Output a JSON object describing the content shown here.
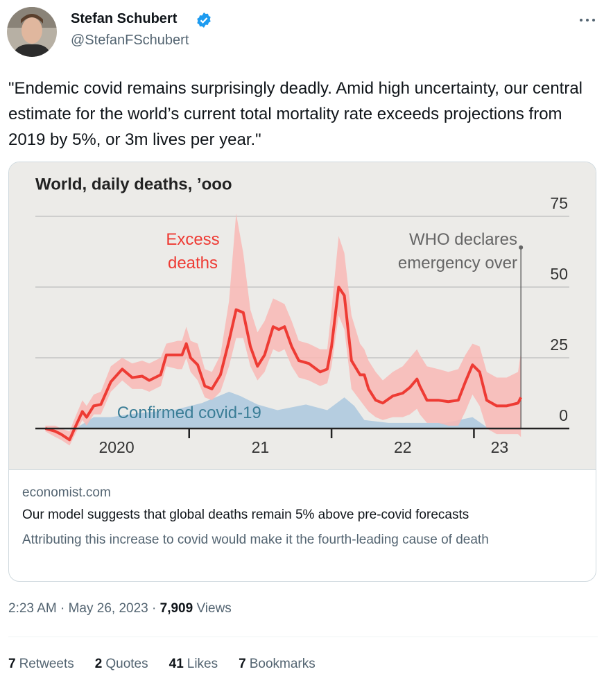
{
  "author": {
    "name": "Stefan Schubert",
    "handle": "@StefanFSchubert"
  },
  "tweet_text": "\"Endemic covid remains surprisingly deadly. Amid high uncertainty, our central estimate for the world’s current total mortality rate exceeds projections from 2019 by 5%, or 3m lives per year.\"",
  "chart_data": {
    "type": "line",
    "title": "World, daily deaths, ’ooo",
    "xlim": [
      2019.92,
      2023.67
    ],
    "xticks": [
      2021,
      2022,
      2023
    ],
    "xlabels": [
      {
        "value": 2020.49,
        "label": "2020"
      },
      {
        "value": 2021.5,
        "label": "21"
      },
      {
        "value": 2022.5,
        "label": "22"
      },
      {
        "value": 2023.18,
        "label": "23"
      }
    ],
    "ylim": [
      -5,
      80
    ],
    "yticks": [
      0,
      25,
      50,
      75
    ],
    "grid": true,
    "series": [
      {
        "name": "Excess deaths",
        "color": "#ee3b34",
        "band_color": "#f9b8b5",
        "x": [
          2019.99,
          2020.06,
          2020.1,
          2020.16,
          2020.2,
          2020.25,
          2020.28,
          2020.33,
          2020.38,
          2020.45,
          2020.53,
          2020.6,
          2020.67,
          2020.72,
          2020.8,
          2020.84,
          2020.92,
          2020.95,
          2020.98,
          2021.01,
          2021.06,
          2021.11,
          2021.16,
          2021.22,
          2021.28,
          2021.33,
          2021.38,
          2021.43,
          2021.48,
          2021.53,
          2021.59,
          2021.63,
          2021.67,
          2021.72,
          2021.77,
          2021.84,
          2021.92,
          2021.97,
          2022.0,
          2022.05,
          2022.09,
          2022.14,
          2022.2,
          2022.23,
          2022.26,
          2022.31,
          2022.36,
          2022.43,
          2022.5,
          2022.55,
          2022.6,
          2022.62,
          2022.67,
          2022.75,
          2022.82,
          2022.89,
          2022.94,
          2022.99,
          2023.04,
          2023.09,
          2023.16,
          2023.23,
          2023.31,
          2023.33
        ],
        "values": [
          0,
          -1,
          -2,
          -4,
          0.5,
          6,
          4,
          8,
          8.5,
          16.5,
          21,
          18,
          18.5,
          17,
          19,
          26,
          26,
          26,
          30,
          25,
          22.5,
          15,
          14,
          19,
          31,
          42,
          41,
          29,
          22,
          26,
          36,
          35,
          36,
          29,
          24,
          23,
          20,
          21,
          29,
          50,
          47,
          24,
          19,
          19,
          14,
          10,
          9,
          11.5,
          12.5,
          14.5,
          17.5,
          15,
          10,
          10,
          9.5,
          10,
          16.5,
          22.5,
          20,
          10,
          8,
          8,
          9,
          11
        ],
        "upper": [
          1,
          1,
          0,
          -1,
          4,
          10,
          8,
          12,
          13,
          22,
          25,
          23,
          24,
          23,
          25,
          30,
          31,
          31,
          36,
          31,
          30,
          21,
          20,
          26,
          45,
          76,
          62,
          42,
          34,
          38,
          46,
          45,
          44,
          38,
          31,
          30,
          28,
          28,
          42,
          68,
          62,
          40,
          30,
          28,
          24,
          20,
          17,
          20,
          22,
          25,
          28,
          26,
          22,
          21,
          20,
          21,
          26,
          30,
          29,
          20,
          18,
          18,
          20,
          27
        ],
        "lower": [
          -1,
          -3,
          -4,
          -6,
          -2,
          3,
          1,
          5,
          5,
          13,
          17,
          14,
          14,
          13,
          15,
          22,
          21,
          21,
          25,
          20,
          17,
          11,
          10,
          13,
          22,
          32,
          32,
          22,
          17,
          20,
          28,
          27,
          28,
          22,
          18,
          17,
          15,
          16,
          22,
          40,
          35,
          14,
          10,
          8,
          6,
          4,
          3,
          4,
          4,
          5,
          7,
          5,
          2,
          2,
          1,
          1,
          6,
          12,
          8,
          0,
          -2,
          -2,
          -2,
          -3
        ]
      },
      {
        "name": "Confirmed covid-19",
        "color": "#b5cde0",
        "label_color": "#3a7d96",
        "x": [
          2020.2,
          2020.33,
          2020.45,
          2020.65,
          2020.89,
          2021.09,
          2021.28,
          2021.36,
          2021.48,
          2021.62,
          2021.82,
          2021.97,
          2022.09,
          2022.16,
          2022.23,
          2022.4,
          2022.6,
          2022.8,
          2022.99,
          2023.09,
          2023.33
        ],
        "values": [
          0,
          4,
          4,
          5.5,
          6.5,
          9,
          13,
          11.5,
          8.5,
          6.5,
          8.5,
          6.5,
          11,
          8,
          3,
          2,
          2,
          2,
          4,
          0.5,
          0
        ]
      }
    ],
    "annotation": {
      "text": "WHO declares emergency over",
      "x": 2023.33,
      "y": 64
    }
  },
  "card": {
    "domain": "economist.com",
    "title": "Our model suggests that global deaths remain 5% above pre-covid forecasts",
    "description": "Attributing this increase to covid would make it the fourth-leading cause of death"
  },
  "meta": {
    "time": "2:23 AM",
    "separator": "·",
    "date": "May 26, 2023",
    "views": "7,909",
    "views_label": "Views"
  },
  "stats": [
    {
      "count": 7,
      "label": "Retweets"
    },
    {
      "count": 2,
      "label": "Quotes"
    },
    {
      "count": 41,
      "label": "Likes"
    },
    {
      "count": 7,
      "label": "Bookmarks"
    }
  ]
}
